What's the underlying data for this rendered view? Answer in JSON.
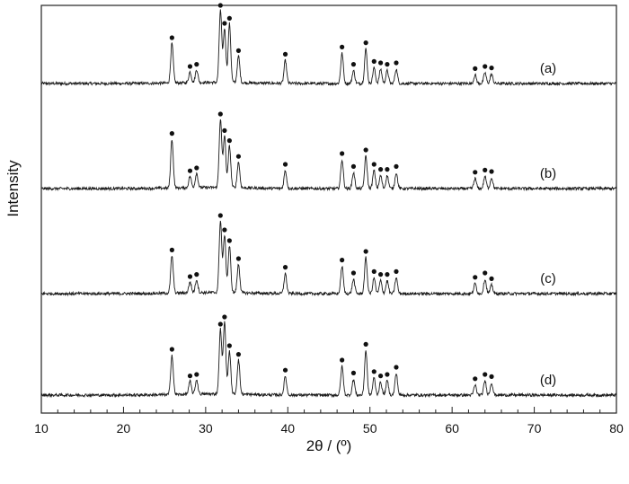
{
  "chart_data": {
    "type": "line",
    "title": "",
    "xlabel": "2θ / (º)",
    "ylabel": "Intensity",
    "xlim": [
      10,
      80
    ],
    "xticks": [
      "10",
      "20",
      "30",
      "40",
      "50",
      "60",
      "70",
      "80"
    ],
    "y_ticks_shown": false,
    "grid": false,
    "legend": "none",
    "line_color": "#1a1a1a",
    "marker": "filled-circle",
    "baseline_noise": 0.01,
    "peak_width": 0.22,
    "series": [
      {
        "label": "(a)",
        "peaks": [
          [
            25.9,
            0.55
          ],
          [
            28.1,
            0.15
          ],
          [
            28.9,
            0.18
          ],
          [
            31.8,
            1.0
          ],
          [
            32.3,
            0.75
          ],
          [
            32.9,
            0.82
          ],
          [
            34.0,
            0.37
          ],
          [
            39.7,
            0.32
          ],
          [
            46.6,
            0.42
          ],
          [
            48.0,
            0.18
          ],
          [
            49.5,
            0.48
          ],
          [
            50.5,
            0.22
          ],
          [
            51.3,
            0.2
          ],
          [
            52.1,
            0.18
          ],
          [
            53.2,
            0.2
          ],
          [
            62.8,
            0.12
          ],
          [
            64.0,
            0.15
          ],
          [
            64.8,
            0.13
          ]
        ]
      },
      {
        "label": "(b)",
        "peaks": [
          [
            25.9,
            0.68
          ],
          [
            28.1,
            0.16
          ],
          [
            28.9,
            0.2
          ],
          [
            31.8,
            0.95
          ],
          [
            32.3,
            0.72
          ],
          [
            32.9,
            0.58
          ],
          [
            34.0,
            0.36
          ],
          [
            39.7,
            0.25
          ],
          [
            46.6,
            0.4
          ],
          [
            48.0,
            0.22
          ],
          [
            49.5,
            0.45
          ],
          [
            50.5,
            0.25
          ],
          [
            51.3,
            0.18
          ],
          [
            52.1,
            0.18
          ],
          [
            53.2,
            0.22
          ],
          [
            62.8,
            0.14
          ],
          [
            64.0,
            0.17
          ],
          [
            64.8,
            0.15
          ]
        ]
      },
      {
        "label": "(c)",
        "peaks": [
          [
            25.9,
            0.52
          ],
          [
            28.1,
            0.15
          ],
          [
            28.9,
            0.18
          ],
          [
            31.8,
            1.0
          ],
          [
            32.3,
            0.8
          ],
          [
            32.9,
            0.65
          ],
          [
            34.0,
            0.4
          ],
          [
            39.7,
            0.28
          ],
          [
            46.6,
            0.38
          ],
          [
            48.0,
            0.2
          ],
          [
            49.5,
            0.5
          ],
          [
            50.5,
            0.22
          ],
          [
            51.3,
            0.18
          ],
          [
            52.1,
            0.18
          ],
          [
            53.2,
            0.22
          ],
          [
            62.8,
            0.14
          ],
          [
            64.0,
            0.2
          ],
          [
            64.8,
            0.12
          ]
        ]
      },
      {
        "label": "(d)",
        "peaks": [
          [
            25.9,
            0.55
          ],
          [
            28.1,
            0.18
          ],
          [
            28.9,
            0.2
          ],
          [
            31.8,
            0.9
          ],
          [
            32.3,
            1.0
          ],
          [
            32.9,
            0.6
          ],
          [
            34.0,
            0.48
          ],
          [
            39.7,
            0.26
          ],
          [
            46.6,
            0.4
          ],
          [
            48.0,
            0.22
          ],
          [
            49.5,
            0.62
          ],
          [
            50.5,
            0.24
          ],
          [
            51.3,
            0.18
          ],
          [
            52.1,
            0.2
          ],
          [
            53.2,
            0.3
          ],
          [
            62.8,
            0.14
          ],
          [
            64.0,
            0.2
          ],
          [
            64.8,
            0.17
          ]
        ]
      }
    ]
  }
}
